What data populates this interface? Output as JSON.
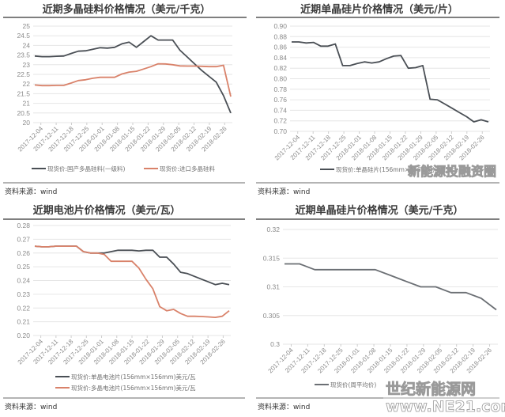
{
  "source_label": "资料来源：wind",
  "watermarks": {
    "wechat": "新能源投融资圈",
    "site_cn": "世纪新能源网",
    "site_url": "www.NE21.com"
  },
  "colors": {
    "dark_series": "#4a4f55",
    "orange_series": "#d9826a",
    "grid": "#e6e6e6",
    "rule": "#555555"
  },
  "chart_data": [
    {
      "type": "line",
      "title": "近期多晶硅料价格情况（美元/千克）",
      "xlabel": "",
      "ylabel": "",
      "ylim": [
        20,
        25
      ],
      "yticks": [
        20,
        20.5,
        21,
        21.5,
        22,
        22.5,
        23,
        23.5,
        24,
        24.5,
        25
      ],
      "ytick_labels": [
        "20",
        "20.5",
        "21",
        "21.5",
        "22",
        "22.5",
        "23",
        "23.5",
        "24",
        "24.5",
        "25"
      ],
      "categories": [
        "2017-12-04",
        "2017-12-11",
        "2017-12-18",
        "2017-12-25",
        "2018-01-01",
        "2018-01-08",
        "2018-01-15",
        "2018-01-22",
        "2018-01-29",
        "2018-02-05",
        "2018-02-12",
        "2018-02-19",
        "2018-02-26"
      ],
      "grid": true,
      "legend_position": "bottom",
      "series": [
        {
          "name": "现货价:国产多晶硅料(一级料)",
          "color": "#4a4f55",
          "values": [
            23.45,
            23.42,
            23.42,
            23.44,
            23.45,
            23.58,
            23.7,
            23.72,
            23.8,
            23.88,
            23.86,
            23.9,
            24.08,
            24.17,
            23.9,
            24.2,
            24.5,
            24.28,
            24.28,
            24.28,
            23.75,
            23.4,
            23.05,
            22.7,
            22.4,
            22.1,
            21.4,
            20.5
          ]
        },
        {
          "name": "现货价:进口多晶硅料",
          "color": "#d9826a",
          "values": [
            21.95,
            21.92,
            21.92,
            21.93,
            21.93,
            22.05,
            22.18,
            22.22,
            22.3,
            22.35,
            22.35,
            22.35,
            22.52,
            22.62,
            22.66,
            22.78,
            22.9,
            23.05,
            23.04,
            23.0,
            22.94,
            22.93,
            22.93,
            22.92,
            22.9,
            22.9,
            22.97,
            21.35
          ]
        }
      ]
    },
    {
      "type": "line",
      "title": "近期单晶硅片价格情况（美元/片）",
      "xlabel": "",
      "ylabel": "",
      "ylim": [
        0.7,
        0.9
      ],
      "yticks": [
        0.7,
        0.72,
        0.74,
        0.76,
        0.78,
        0.8,
        0.82,
        0.84,
        0.86,
        0.88,
        0.9
      ],
      "ytick_labels": [
        "0.70",
        "0.72",
        "0.74",
        "0.76",
        "0.78",
        "0.80",
        "0.82",
        "0.84",
        "0.86",
        "0.88",
        "0.90"
      ],
      "categories": [
        "2017-12-04",
        "2017-12-11",
        "2017-12-18",
        "2017-12-25",
        "2018-01-01",
        "2018-01-08",
        "2018-01-15",
        "2018-01-22",
        "2018-01-29",
        "2018-02-05",
        "2018-02-12",
        "2018-02-19",
        "2018-02-26"
      ],
      "grid": true,
      "legend_position": "bottom",
      "series": [
        {
          "name": "现货价:单晶硅片(156mm×156mm)美元/片",
          "color": "#4a4f55",
          "values": [
            0.87,
            0.87,
            0.868,
            0.869,
            0.862,
            0.862,
            0.866,
            0.825,
            0.825,
            0.829,
            0.832,
            0.83,
            0.832,
            0.838,
            0.843,
            0.844,
            0.82,
            0.821,
            0.825,
            0.761,
            0.76,
            0.752,
            0.744,
            0.736,
            0.728,
            0.718,
            0.722,
            0.718
          ]
        }
      ]
    },
    {
      "type": "line",
      "title": "近期电池片价格情况（美元/瓦）",
      "xlabel": "",
      "ylabel": "",
      "ylim": [
        0.2,
        0.28
      ],
      "yticks": [
        0.2,
        0.21,
        0.22,
        0.23,
        0.24,
        0.25,
        0.26,
        0.27,
        0.28
      ],
      "ytick_labels": [
        "0.20",
        "0.21",
        "0.22",
        "0.23",
        "0.24",
        "0.25",
        "0.26",
        "0.27",
        "0.28"
      ],
      "categories": [
        "2017-12-04",
        "2017-12-11",
        "2017-12-18",
        "2017-12-25",
        "2018-01-01",
        "2018-01-08",
        "2018-01-15",
        "2018-01-22",
        "2018-01-29",
        "2018-02-05",
        "2018-02-12",
        "2018-02-19",
        "2018-02-26"
      ],
      "grid": true,
      "legend_position": "bottom",
      "series": [
        {
          "name": "现货价:单晶电池片(156mm×156mm)美元/瓦",
          "color": "#4a4f55",
          "values": [
            0.265,
            0.2645,
            0.2645,
            0.265,
            0.265,
            0.265,
            0.265,
            0.261,
            0.26,
            0.26,
            0.26,
            0.261,
            0.262,
            0.262,
            0.262,
            0.2615,
            0.262,
            0.262,
            0.257,
            0.257,
            0.252,
            0.246,
            0.245,
            0.243,
            0.241,
            0.239,
            0.237,
            0.238,
            0.237
          ]
        },
        {
          "name": "现货价:多晶电池片(156mm×156mm)美元/瓦",
          "color": "#d9826a",
          "values": [
            0.265,
            0.2645,
            0.2645,
            0.265,
            0.265,
            0.265,
            0.265,
            0.261,
            0.26,
            0.26,
            0.259,
            0.254,
            0.254,
            0.254,
            0.254,
            0.249,
            0.241,
            0.234,
            0.221,
            0.218,
            0.219,
            0.216,
            0.214,
            0.214,
            0.2138,
            0.2135,
            0.2132,
            0.214,
            0.218
          ]
        }
      ]
    },
    {
      "type": "line",
      "title": "近期单晶硅片价格情况（美元/千克）",
      "xlabel": "",
      "ylabel": "",
      "ylim": [
        0.3,
        0.32
      ],
      "yticks": [
        0.3,
        0.305,
        0.31,
        0.315,
        0.32
      ],
      "ytick_labels": [
        "0.3",
        "0.305",
        "0.31",
        "0.315",
        "0.32"
      ],
      "categories": [
        "2017-12-04",
        "2017-12-11",
        "2017-12-18",
        "2017-12-25",
        "2018-01-01",
        "2018-01-08",
        "2018-01-15",
        "2018-01-22",
        "2018-01-29",
        "2018-02-05",
        "2018-02-12",
        "2018-02-19",
        "2018-02-26"
      ],
      "grid": true,
      "legend_position": "bottom",
      "series": [
        {
          "name": "现货价(周平均价)",
          "color": "#6b6f74",
          "values": [
            0.314,
            0.314,
            0.313,
            0.313,
            0.313,
            0.313,
            0.313,
            0.312,
            0.311,
            0.31,
            0.31,
            0.309,
            0.309,
            0.308,
            0.306
          ]
        }
      ]
    }
  ]
}
